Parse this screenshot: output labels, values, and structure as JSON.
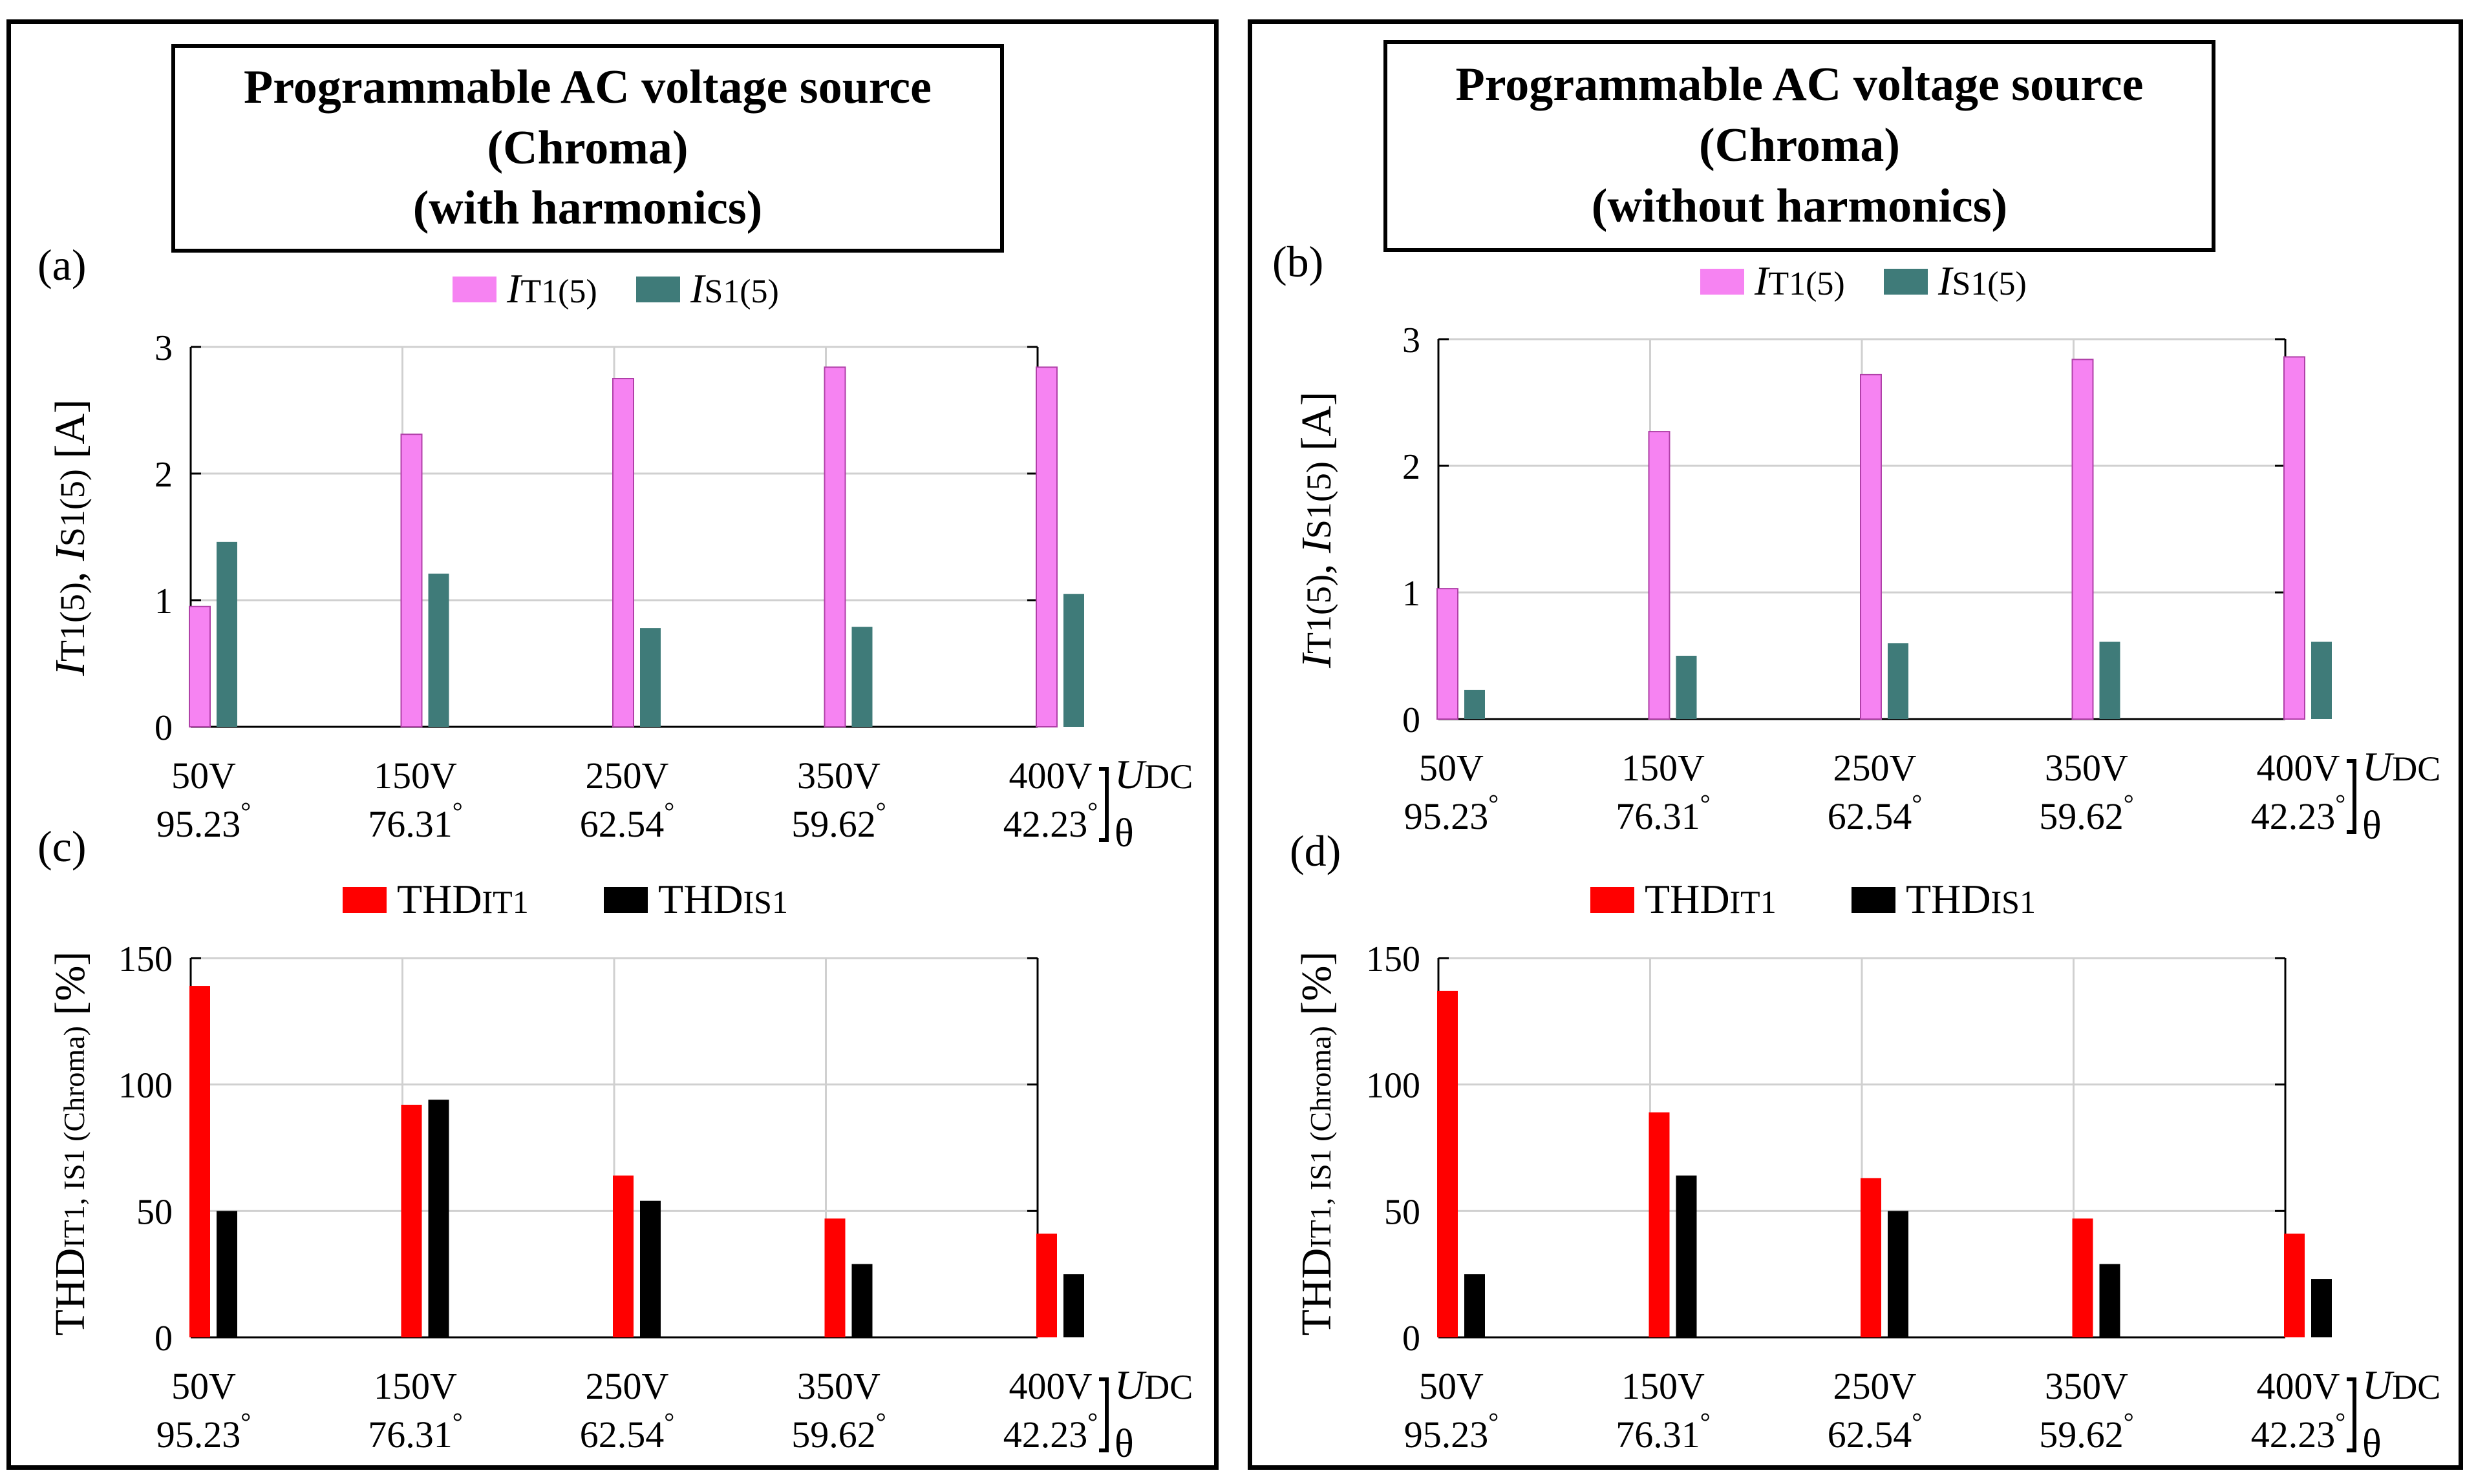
{
  "panels": [
    {
      "id": "left",
      "title_lines": [
        "Programmable AC voltage source",
        "(Chroma)",
        "(with harmonics)"
      ]
    },
    {
      "id": "right",
      "title_lines": [
        "Programmable AC voltage source",
        "(Chroma)",
        "(without harmonics)"
      ]
    }
  ],
  "x_axis": {
    "voltage_labels": [
      "50V",
      "150V",
      "250V",
      "350V",
      "400V"
    ],
    "angle_labels": [
      "95.23",
      "76.31",
      "62.54",
      "59.62",
      "42.23"
    ],
    "degree_symbol": "°",
    "udc_label": {
      "main": "U",
      "sub": "DC"
    },
    "theta_label": "θ"
  },
  "colors": {
    "pink": "#f683f2",
    "teal": "#3f7b79",
    "red": "#ff0000",
    "black": "#000000",
    "grid": "#d0d0d0"
  },
  "chart_data": [
    {
      "panel": "a",
      "type": "bar",
      "label": "(a)",
      "categories": [
        "50V",
        "150V",
        "250V",
        "350V",
        "400V"
      ],
      "ylim": [
        0,
        3
      ],
      "yticks": [
        0,
        1,
        2,
        3
      ],
      "ylabel": {
        "main1": "I",
        "sub1": "T1(5)",
        "sep": ", ",
        "main2": "I",
        "sub2": "S1(5)",
        "unit": " [A]"
      },
      "series": [
        {
          "name": "IT1(5)",
          "legend_main": "I",
          "legend_sub": "T1(5)",
          "color": "#f683f2",
          "values": [
            0.95,
            2.31,
            2.75,
            2.84,
            2.84
          ]
        },
        {
          "name": "IS1(5)",
          "legend_main": "I",
          "legend_sub": "S1(5)",
          "color": "#3f7b79",
          "values": [
            1.46,
            1.21,
            0.78,
            0.79,
            1.05
          ]
        }
      ]
    },
    {
      "panel": "b",
      "type": "bar",
      "label": "(b)",
      "categories": [
        "50V",
        "150V",
        "250V",
        "350V",
        "400V"
      ],
      "ylim": [
        0,
        3
      ],
      "yticks": [
        0,
        1,
        2,
        3
      ],
      "ylabel": {
        "main1": "I",
        "sub1": "T1(5)",
        "sep": ", ",
        "main2": "I",
        "sub2": "S1(5)",
        "unit": " [A]"
      },
      "series": [
        {
          "name": "IT1(5)",
          "legend_main": "I",
          "legend_sub": "T1(5)",
          "color": "#f683f2",
          "values": [
            1.03,
            2.27,
            2.72,
            2.84,
            2.86
          ]
        },
        {
          "name": "IS1(5)",
          "legend_main": "I",
          "legend_sub": "S1(5)",
          "color": "#3f7b79",
          "values": [
            0.23,
            0.5,
            0.6,
            0.61,
            0.61
          ]
        }
      ]
    },
    {
      "panel": "c",
      "type": "bar",
      "label": "(c)",
      "categories": [
        "50V",
        "150V",
        "250V",
        "350V",
        "400V"
      ],
      "ylim": [
        0,
        150
      ],
      "yticks": [
        0,
        50,
        100,
        150
      ],
      "ylabel": {
        "main1": "THD",
        "sub1": "IT1, IS1 (Chroma)",
        "sep": "",
        "main2": "",
        "sub2": "",
        "unit": " [%]"
      },
      "series": [
        {
          "name": "THDIT1",
          "legend_main": "THD",
          "legend_sub": "IT1",
          "color": "#ff0000",
          "values": [
            139,
            92,
            64,
            47,
            41
          ]
        },
        {
          "name": "THDIS1",
          "legend_main": "THD",
          "legend_sub": "IS1",
          "color": "#000000",
          "values": [
            50,
            94,
            54,
            29,
            25
          ]
        }
      ]
    },
    {
      "panel": "d",
      "type": "bar",
      "label": "(d)",
      "categories": [
        "50V",
        "150V",
        "250V",
        "350V",
        "400V"
      ],
      "ylim": [
        0,
        150
      ],
      "yticks": [
        0,
        50,
        100,
        150
      ],
      "ylabel": {
        "main1": "THD",
        "sub1": "IT1, IS1 (Chroma)",
        "sep": "",
        "main2": "",
        "sub2": "",
        "unit": " [%]"
      },
      "series": [
        {
          "name": "THDIT1",
          "legend_main": "THD",
          "legend_sub": "IT1",
          "color": "#ff0000",
          "values": [
            137,
            89,
            63,
            47,
            41
          ]
        },
        {
          "name": "THDIS1",
          "legend_main": "THD",
          "legend_sub": "IS1",
          "color": "#000000",
          "values": [
            25,
            64,
            50,
            29,
            23
          ]
        }
      ]
    }
  ]
}
